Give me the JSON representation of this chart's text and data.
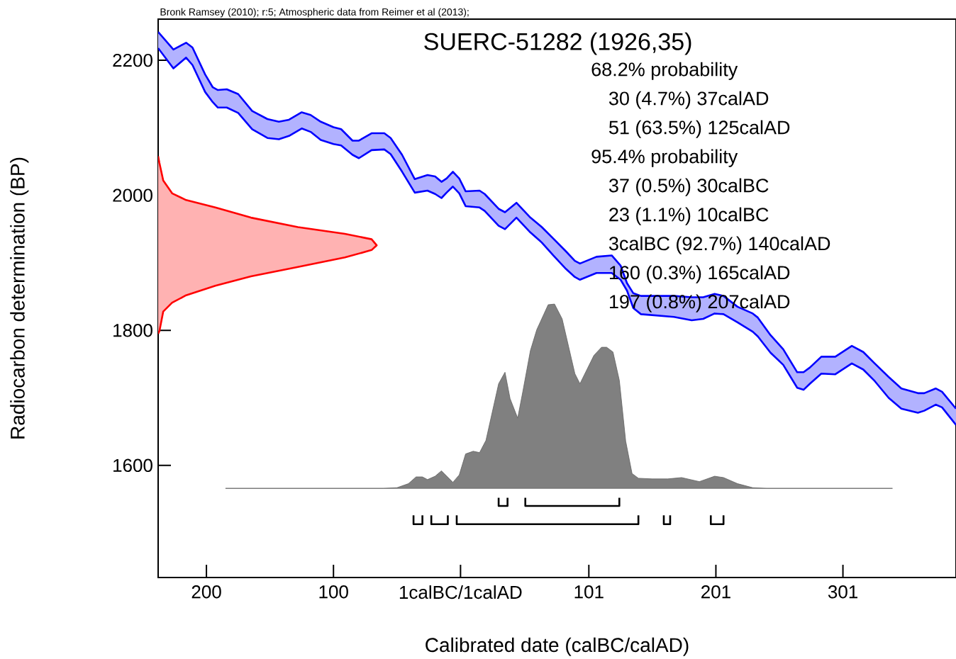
{
  "chart_data": {
    "type": "area",
    "title": "SUERC-51282 (1926,35)",
    "xlabel": "Calibrated date (calBC/calAD)",
    "ylabel": "Radiocarbon determination (BP)",
    "annotations": [
      "Bronk Ramsey (2010); r:5; Atmospheric data from Reimer et al (2013);",
      "68.2% probability",
      "30 (4.7%) 37calAD",
      "51 (63.5%) 125calAD",
      "95.4% probability",
      "37 (0.5%) 30calBC",
      "23 (1.1%) 10calBC",
      "3calBC (92.7%) 140calAD",
      "160 (0.3%) 165calAD",
      "197 (0.8%) 207calAD"
    ],
    "xlim": [
      -238,
      390
    ],
    "ylim": [
      1434,
      2261
    ],
    "xticks": [
      {
        "value": -200,
        "label": "200"
      },
      {
        "value": -100,
        "label": "100"
      },
      {
        "value": 0,
        "label": "1calBC/1calAD"
      },
      101,
      201,
      301
    ],
    "yticks": [
      1600,
      1800,
      2000,
      2200
    ],
    "series": [
      {
        "type": "line",
        "color": "#0000ff",
        "x": [
          -238,
          -226,
          -216,
          -211,
          -201,
          -195,
          -191,
          -184,
          -175,
          -164,
          -152,
          -143,
          -135,
          -125,
          -118,
          -110,
          -100,
          -94,
          -85,
          -80,
          -70,
          -60,
          -55,
          -46,
          -36,
          -26,
          -20,
          -15,
          -11,
          -6,
          -1,
          4,
          15,
          19,
          30,
          35,
          44,
          55,
          64,
          73,
          83,
          90,
          94,
          107,
          119,
          126,
          131,
          136,
          142,
          168,
          182,
          191,
          200,
          207,
          218,
          230,
          234,
          244,
          254,
          265,
          270,
          275,
          284,
          295,
          308,
          317,
          326,
          337,
          347,
          360,
          365,
          374,
          379,
          390
        ],
        "values": [
          2242,
          2216,
          2226,
          2219,
          2179,
          2160,
          2156,
          2157,
          2150,
          2125,
          2113,
          2109,
          2112,
          2123,
          2119,
          2109,
          2101,
          2098,
          2081,
          2081,
          2092,
          2092,
          2085,
          2060,
          2024,
          2030,
          2028,
          2020,
          2025,
          2035,
          2025,
          2006,
          2007,
          2002,
          1980,
          1975,
          1989,
          1967,
          1953,
          1936,
          1917,
          1903,
          1899,
          1909,
          1911,
          1896,
          1870,
          1855,
          1851,
          1851,
          1849,
          1849,
          1854,
          1851,
          1835,
          1825,
          1819,
          1793,
          1772,
          1738,
          1738,
          1745,
          1761,
          1761,
          1777,
          1768,
          1751,
          1731,
          1714,
          1707,
          1707,
          1714,
          1709,
          1684
        ],
        "upper": [
          2242,
          2216,
          2226,
          2219,
          2179,
          2160,
          2156,
          2157,
          2150,
          2125,
          2113,
          2109,
          2112,
          2123,
          2119,
          2109,
          2101,
          2098,
          2081,
          2081,
          2092,
          2092,
          2085,
          2060,
          2024,
          2030,
          2028,
          2020,
          2025,
          2035,
          2025,
          2006,
          2007,
          2002,
          1980,
          1975,
          1989,
          1967,
          1953,
          1936,
          1917,
          1903,
          1899,
          1909,
          1911,
          1896,
          1870,
          1855,
          1851,
          1851,
          1849,
          1849,
          1854,
          1851,
          1835,
          1825,
          1819,
          1793,
          1772,
          1738,
          1738,
          1745,
          1761,
          1761,
          1777,
          1768,
          1751,
          1731,
          1714,
          1707,
          1707,
          1714,
          1709,
          1684
        ],
        "lower": [
          2218,
          2188,
          2204,
          2193,
          2153,
          2138,
          2130,
          2130,
          2122,
          2098,
          2085,
          2083,
          2088,
          2099,
          2094,
          2082,
          2076,
          2074,
          2060,
          2055,
          2067,
          2068,
          2061,
          2035,
          2004,
          2007,
          2002,
          1996,
          2004,
          2013,
          2003,
          1984,
          1982,
          1977,
          1955,
          1950,
          1967,
          1945,
          1930,
          1911,
          1891,
          1879,
          1875,
          1885,
          1885,
          1875,
          1859,
          1833,
          1824,
          1820,
          1815,
          1817,
          1825,
          1824,
          1812,
          1798,
          1791,
          1767,
          1749,
          1715,
          1712,
          1721,
          1736,
          1735,
          1751,
          1742,
          1725,
          1700,
          1684,
          1678,
          1681,
          1690,
          1686,
          1660
        ]
      },
      {
        "type": "line",
        "color": "#0000ff",
        "x": [
          -238,
          -226,
          -216,
          -211,
          -201,
          -195,
          -191,
          -184,
          -175,
          -164,
          -152,
          -143,
          -135,
          -125,
          -118,
          -110,
          -100,
          -94,
          -85,
          -80,
          -70,
          -60,
          -55,
          -46,
          -36,
          -26,
          -20,
          -15,
          -11,
          -6,
          -1,
          4,
          15,
          19,
          30,
          35,
          44,
          55,
          64,
          73,
          83,
          90,
          94,
          107,
          119,
          126,
          131,
          136,
          142,
          168,
          182,
          191,
          200,
          207,
          218,
          230,
          234,
          244,
          254,
          265,
          270,
          275,
          284,
          295,
          308,
          317,
          326,
          337,
          347,
          360,
          365,
          374,
          379,
          390
        ],
        "values": [
          2218,
          2188,
          2204,
          2193,
          2153,
          2138,
          2130,
          2130,
          2122,
          2098,
          2085,
          2083,
          2088,
          2099,
          2094,
          2082,
          2076,
          2074,
          2060,
          2055,
          2067,
          2068,
          2061,
          2035,
          2004,
          2007,
          2002,
          1996,
          2004,
          2013,
          2003,
          1984,
          1982,
          1977,
          1955,
          1950,
          1967,
          1945,
          1930,
          1911,
          1891,
          1879,
          1875,
          1885,
          1885,
          1875,
          1859,
          1833,
          1824,
          1820,
          1815,
          1817,
          1825,
          1824,
          1812,
          1798,
          1791,
          1767,
          1749,
          1715,
          1712,
          1721,
          1736,
          1735,
          1751,
          1742,
          1725,
          1700,
          1684,
          1678,
          1681,
          1690,
          1686,
          1660
        ]
      },
      {
        "color": "#ff0000",
        "x": [
          -238,
          -237,
          -234,
          -227,
          -216,
          -193,
          -165,
          -128,
          -91,
          -70,
          -66,
          -70,
          -91,
          -128,
          -165,
          -193,
          -216,
          -227,
          -234,
          -237,
          -238
        ],
        "values": [
          2058,
          2048,
          2022,
          2003,
          1993,
          1982,
          1967,
          1953,
          1943,
          1935,
          1926,
          1919,
          1908,
          1894,
          1880,
          1866,
          1852,
          1841,
          1828,
          1799,
          1795
        ]
      },
      {
        "color": "#808080",
        "x": [
          -185,
          -61,
          -50,
          -41,
          -35,
          -30,
          -26,
          -20,
          -15,
          -6,
          -1,
          4,
          10,
          15,
          20,
          30,
          35,
          39,
          45,
          49,
          55,
          60,
          69,
          74,
          80,
          90,
          94,
          105,
          111,
          115,
          120,
          125,
          130,
          135,
          140,
          151,
          163,
          174,
          188,
          200,
          207,
          218,
          230,
          241,
          340
        ],
        "values": [
          1566,
          1566,
          1567,
          1573,
          1583,
          1583,
          1579,
          1584,
          1592,
          1575,
          1586,
          1617,
          1621,
          1619,
          1637,
          1721,
          1738,
          1699,
          1670,
          1709,
          1770,
          1801,
          1838,
          1839,
          1817,
          1736,
          1721,
          1763,
          1775,
          1775,
          1768,
          1726,
          1636,
          1588,
          1581,
          1580,
          1580,
          1582,
          1576,
          1584,
          1582,
          1573,
          1567,
          1566,
          1566
        ]
      },
      {
        "type": "line",
        "color": "#000000",
        "x": [
          30,
          30,
          37,
          37,
          null,
          51,
          51,
          125,
          125
        ],
        "values": [
          1552,
          1540,
          1540,
          1552,
          null,
          1552,
          1540,
          1540,
          1552
        ]
      },
      {
        "type": "line",
        "color": "#000000",
        "x": [
          -37,
          -37,
          -30,
          -30,
          null,
          -23,
          -23,
          -10,
          -10,
          null,
          -3,
          -3,
          140,
          140,
          null,
          160,
          160,
          165,
          165,
          null,
          197,
          197,
          207,
          207
        ],
        "values": [
          1526,
          1513,
          1513,
          1526,
          null,
          1526,
          1513,
          1513,
          1526,
          null,
          1526,
          1513,
          1513,
          1526,
          null,
          1526,
          1513,
          1513,
          1526,
          null,
          1526,
          1513,
          1513,
          1526
        ]
      }
    ]
  }
}
